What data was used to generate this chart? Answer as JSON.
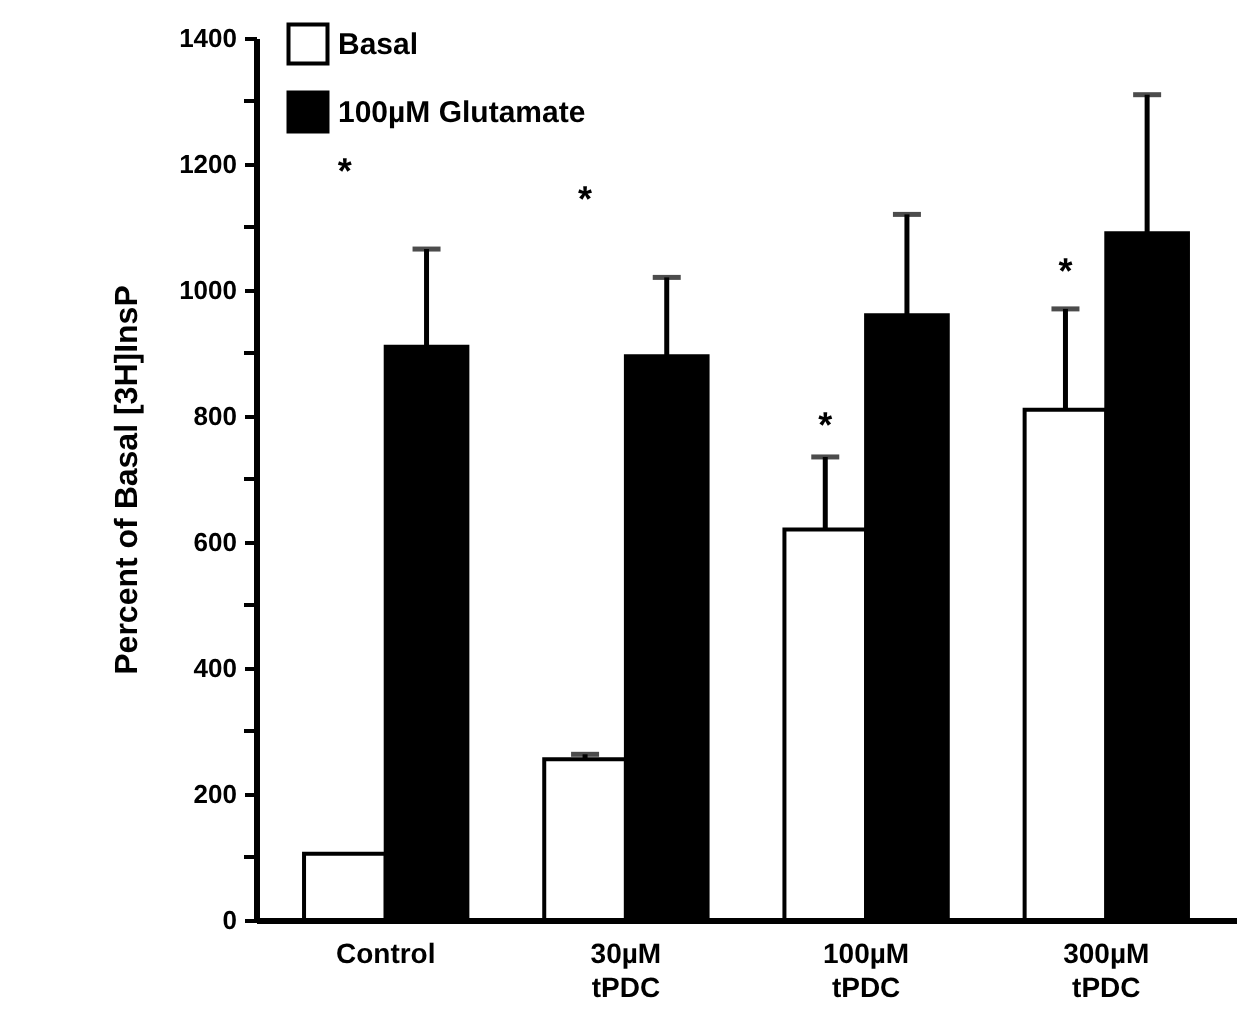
{
  "chart_data": {
    "type": "bar",
    "ylabel": "Percent of Basal [3H]InsP",
    "categories": [
      "Control",
      "30µM\ntPDC",
      "100µM\ntPDC",
      "300µM\ntPDC"
    ],
    "series": [
      {
        "name": "Basal",
        "color": "#ffffff",
        "values": [
          105,
          255,
          620,
          810
        ],
        "errors": [
          null,
          [
            255,
            263
          ],
          [
            620,
            735
          ],
          [
            810,
            970
          ]
        ]
      },
      {
        "name": "100µM Glutamate",
        "color": "#000000",
        "values": [
          910,
          895,
          960,
          1090
        ],
        "errors": [
          [
            910,
            1065
          ],
          [
            895,
            1020
          ],
          [
            960,
            1120
          ],
          [
            1090,
            1310
          ]
        ]
      }
    ],
    "ylim": [
      0,
      1400
    ],
    "yticks": [
      0,
      {
        "value": 100,
        "label": null
      },
      200,
      {
        "value": 300,
        "label": null
      },
      400,
      {
        "value": 500,
        "label": null
      },
      600,
      {
        "value": 700,
        "label": null
      },
      800,
      {
        "value": 900,
        "label": null
      },
      1000,
      {
        "value": 1100,
        "label": null
      },
      1200,
      {
        "value": 1300,
        "label": null
      },
      1400
    ],
    "annotations": [
      "*",
      "*",
      {
        "text": "*",
        "x": "100µM\ntPDC",
        "y": 795
      },
      {
        "text": "*",
        "x": "300µM\ntPDC",
        "y": 1040
      }
    ],
    "legend": "top left",
    "grid": false
  }
}
